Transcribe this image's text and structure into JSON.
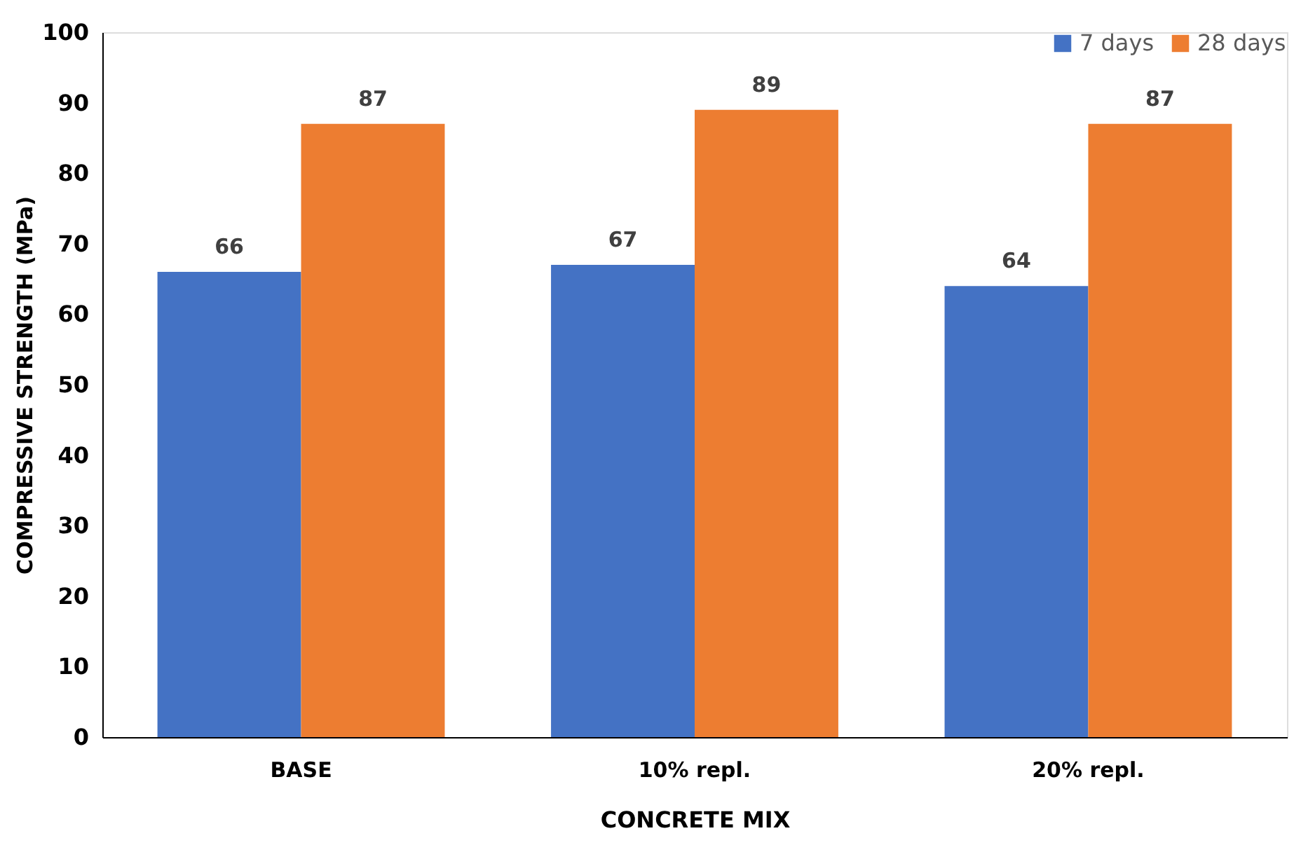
{
  "chart_data": {
    "type": "bar",
    "xlabel": "CONCRETE MIX",
    "ylabel": "COMPRESSIVE STRENGTH (MPa)",
    "categories": [
      "BASE",
      "10% repl.",
      "20% repl."
    ],
    "series": [
      {
        "name": "7 days",
        "color": "#4472c4",
        "values": [
          66,
          67,
          64
        ]
      },
      {
        "name": "28 days",
        "color": "#ed7d31",
        "values": [
          87,
          89,
          87
        ]
      }
    ],
    "ylim": [
      0,
      100
    ],
    "yticks": [
      0,
      10,
      20,
      30,
      40,
      50,
      60,
      70,
      80,
      90,
      100
    ],
    "grid": false,
    "legend": "top right",
    "data_labels": true
  }
}
